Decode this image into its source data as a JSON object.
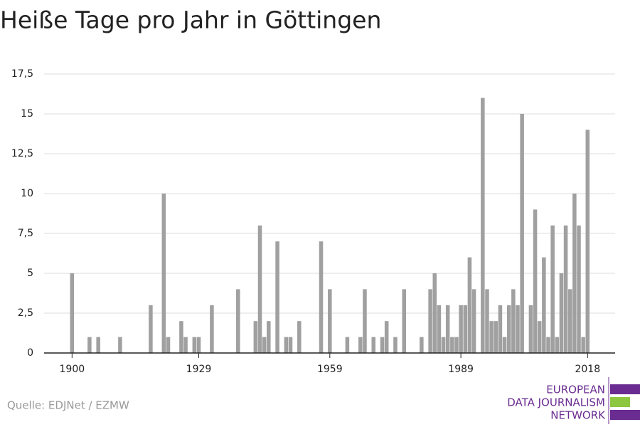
{
  "chart_data": {
    "type": "bar",
    "title": "Heiße Tage pro Jahr in Göttingen",
    "source": "Quelle: EDJNet / EZMW",
    "logo": [
      "EUROPEAN",
      "DATA JOURNALISM",
      "NETWORK"
    ],
    "color": "#a0a0a0",
    "x": [
      1900,
      1901,
      1902,
      1903,
      1904,
      1905,
      1906,
      1907,
      1908,
      1909,
      1910,
      1911,
      1912,
      1913,
      1914,
      1915,
      1916,
      1917,
      1918,
      1919,
      1920,
      1921,
      1922,
      1923,
      1924,
      1925,
      1926,
      1927,
      1928,
      1929,
      1930,
      1931,
      1932,
      1933,
      1934,
      1935,
      1936,
      1937,
      1938,
      1939,
      1940,
      1941,
      1942,
      1943,
      1944,
      1945,
      1946,
      1947,
      1948,
      1949,
      1950,
      1951,
      1952,
      1953,
      1954,
      1955,
      1956,
      1957,
      1958,
      1959,
      1960,
      1961,
      1962,
      1963,
      1964,
      1965,
      1966,
      1967,
      1968,
      1969,
      1970,
      1971,
      1972,
      1973,
      1974,
      1975,
      1976,
      1977,
      1978,
      1979,
      1980,
      1981,
      1982,
      1983,
      1984,
      1985,
      1986,
      1987,
      1988,
      1989,
      1990,
      1991,
      1992,
      1993,
      1994,
      1995,
      1996,
      1997,
      1998,
      1999,
      2000,
      2001,
      2002,
      2003,
      2004,
      2005,
      2006,
      2007,
      2008,
      2009,
      2010,
      2011,
      2012,
      2013,
      2014,
      2015,
      2016,
      2017,
      2018
    ],
    "values": [
      5,
      0,
      0,
      0,
      1,
      0,
      1,
      0,
      0,
      0,
      0,
      1,
      0,
      0,
      0,
      0,
      0,
      0,
      3,
      0,
      0,
      10,
      1,
      0,
      0,
      2,
      1,
      0,
      1,
      1,
      0,
      0,
      3,
      0,
      0,
      0,
      0,
      0,
      4,
      0,
      0,
      0,
      2,
      8,
      1,
      2,
      0,
      7,
      0,
      1,
      1,
      0,
      2,
      0,
      0,
      0,
      0,
      7,
      0,
      4,
      0,
      0,
      0,
      1,
      0,
      0,
      1,
      4,
      0,
      1,
      0,
      1,
      2,
      0,
      1,
      0,
      4,
      0,
      0,
      0,
      1,
      0,
      4,
      5,
      3,
      1,
      3,
      1,
      1,
      3,
      3,
      6,
      4,
      0,
      16,
      4,
      2,
      2,
      3,
      1,
      3,
      4,
      3,
      15,
      0,
      3,
      9,
      2,
      6,
      1,
      8,
      1,
      5,
      8,
      4,
      10,
      8,
      1,
      14
    ],
    "xlim": [
      1893.6,
      2024.3
    ],
    "xticks": [
      1900,
      1929,
      1959,
      1989,
      2018
    ],
    "ylim": [
      0,
      17.5
    ],
    "yticks": [
      0,
      {
        "value": 2.5,
        "label": "2,5"
      },
      5,
      {
        "value": 7.5,
        "label": "7,5"
      },
      10,
      {
        "value": 12.5,
        "label": "12,5"
      },
      15,
      {
        "value": 17.5,
        "label": "17,5"
      }
    ],
    "grid": true
  }
}
